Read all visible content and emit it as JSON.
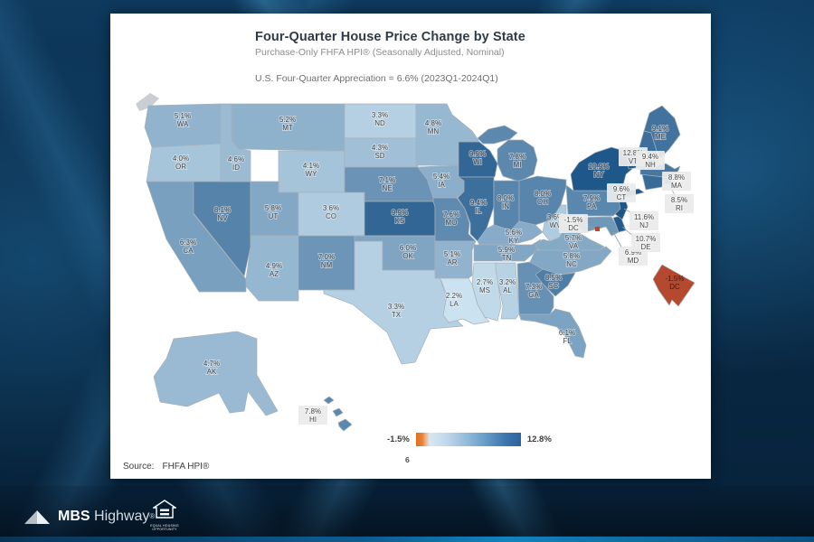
{
  "slide": {
    "title": "Four-Quarter House Price Change by State",
    "subtitle": "Purchase-Only FHFA HPI® (Seasonally Adjusted, Nominal)",
    "note": "U.S. Four-Quarter Appreciation = 6.6% (2023Q1-2024Q1)",
    "source_label": "Source:",
    "source_value": "FHFA HPI®",
    "page_number": "6",
    "legend": {
      "min_label": "-1.5%",
      "max_label": "12.8%"
    }
  },
  "footer": {
    "brand_bold": "MBS",
    "brand_rest": " Highway",
    "brand_mark": "®",
    "equal_housing_line1": "EQUAL HOUSING",
    "equal_housing_line2": "OPPORTUNITY"
  },
  "chart_data": {
    "type": "heatmap",
    "subtype": "us-choropleth-map",
    "title": "Four-Quarter House Price Change by State",
    "subtitle": "Purchase-Only FHFA HPI® (Seasonally Adjusted, Nominal)",
    "annotation": "U.S. Four-Quarter Appreciation = 6.6% (2023Q1-2024Q1)",
    "value_format": "percent",
    "value_range": [
      -1.5,
      12.8
    ],
    "legend_position": "bottom",
    "colors": {
      "scale_low": "#cfe5f2",
      "scale_high": "#1c5588",
      "negative": "#b5492f"
    },
    "states": [
      {
        "abbr": "WA",
        "value": 5.1,
        "label": "5.1%"
      },
      {
        "abbr": "OR",
        "value": 4.0,
        "label": "4.0%"
      },
      {
        "abbr": "CA",
        "value": 6.3,
        "label": "6.3%"
      },
      {
        "abbr": "NV",
        "value": 8.1,
        "label": "8.1%"
      },
      {
        "abbr": "ID",
        "value": 4.6,
        "label": "4.6%"
      },
      {
        "abbr": "MT",
        "value": 5.2,
        "label": "5.2%"
      },
      {
        "abbr": "WY",
        "value": 4.1,
        "label": "4.1%"
      },
      {
        "abbr": "UT",
        "value": 5.8,
        "label": "5.8%"
      },
      {
        "abbr": "CO",
        "value": 3.6,
        "label": "3.6%"
      },
      {
        "abbr": "AZ",
        "value": 4.9,
        "label": "4.9%"
      },
      {
        "abbr": "NM",
        "value": 7.0,
        "label": "7.0%"
      },
      {
        "abbr": "TX",
        "value": 3.3,
        "label": "3.3%"
      },
      {
        "abbr": "ND",
        "value": 3.3,
        "label": "3.3%"
      },
      {
        "abbr": "SD",
        "value": 4.3,
        "label": "4.3%"
      },
      {
        "abbr": "NE",
        "value": 7.1,
        "label": "7.1%"
      },
      {
        "abbr": "KS",
        "value": 9.9,
        "label": "9.9%"
      },
      {
        "abbr": "OK",
        "value": 6.0,
        "label": "6.0%"
      },
      {
        "abbr": "MN",
        "value": 4.8,
        "label": "4.8%"
      },
      {
        "abbr": "IA",
        "value": 5.4,
        "label": "5.4%"
      },
      {
        "abbr": "MO",
        "value": 7.6,
        "label": "7.6%"
      },
      {
        "abbr": "AR",
        "value": 5.1,
        "label": "5.1%"
      },
      {
        "abbr": "LA",
        "value": 2.2,
        "label": "2.2%"
      },
      {
        "abbr": "WI",
        "value": 9.9,
        "label": "9.9%"
      },
      {
        "abbr": "IL",
        "value": 9.4,
        "label": "9.4%"
      },
      {
        "abbr": "MS",
        "value": 2.7,
        "label": "2.7%"
      },
      {
        "abbr": "AL",
        "value": 3.2,
        "label": "3.2%"
      },
      {
        "abbr": "MI",
        "value": 7.8,
        "label": "7.8%"
      },
      {
        "abbr": "IN",
        "value": 8.0,
        "label": "8.0%"
      },
      {
        "abbr": "OH",
        "value": 8.0,
        "label": "8.0%"
      },
      {
        "abbr": "KY",
        "value": 5.6,
        "label": "5.6%"
      },
      {
        "abbr": "TN",
        "value": 5.9,
        "label": "5.9%"
      },
      {
        "abbr": "GA",
        "value": 7.3,
        "label": "7.3%"
      },
      {
        "abbr": "FL",
        "value": 6.1,
        "label": "6.1%"
      },
      {
        "abbr": "SC",
        "value": 8.5,
        "label": "8.5%"
      },
      {
        "abbr": "NC",
        "value": 5.8,
        "label": "5.8%"
      },
      {
        "abbr": "VA",
        "value": 5.7,
        "label": "5.7%"
      },
      {
        "abbr": "WV",
        "value": 3.6,
        "label": "3.6%"
      },
      {
        "abbr": "MD",
        "value": 6.9,
        "label": "6.9%"
      },
      {
        "abbr": "DE",
        "value": 10.7,
        "label": "10.7%"
      },
      {
        "abbr": "NJ",
        "value": 11.6,
        "label": "11.6%"
      },
      {
        "abbr": "PA",
        "value": 7.9,
        "label": "7.9%"
      },
      {
        "abbr": "NY",
        "value": 10.9,
        "label": "10.9%"
      },
      {
        "abbr": "CT",
        "value": 9.6,
        "label": "9.6%"
      },
      {
        "abbr": "RI",
        "value": 8.5,
        "label": "8.5%"
      },
      {
        "abbr": "MA",
        "value": 8.8,
        "label": "8.8%"
      },
      {
        "abbr": "VT",
        "value": 12.8,
        "label": "12.8%"
      },
      {
        "abbr": "NH",
        "value": 9.4,
        "label": "9.4%"
      },
      {
        "abbr": "ME",
        "value": 9.1,
        "label": "9.1%"
      },
      {
        "abbr": "AK",
        "value": 4.7,
        "label": "4.7%"
      },
      {
        "abbr": "HI",
        "value": 7.8,
        "label": "7.8%"
      },
      {
        "abbr": "DC",
        "value": -1.5,
        "label": "-1.5%"
      }
    ]
  }
}
